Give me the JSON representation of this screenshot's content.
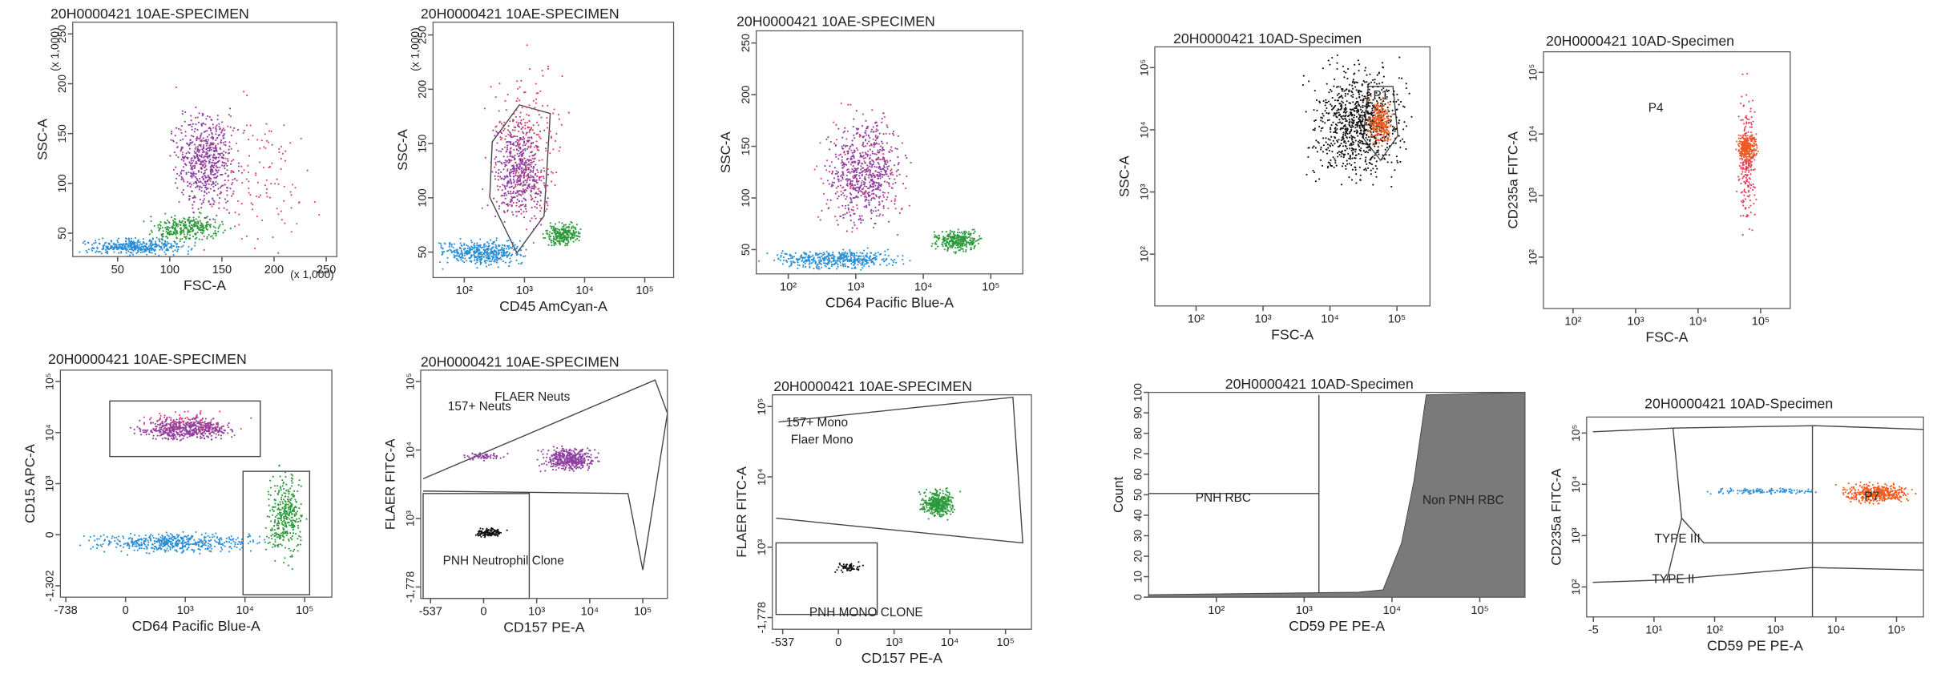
{
  "panels": [
    {
      "title": "20H0000421 10AE-SPECIMEN",
      "y_label": "SSC-A",
      "y_unit": "(x 1,000)",
      "x_label": "FSC-A",
      "x_unit": "(x 1,000)",
      "y_ticks": [
        "50",
        "100",
        "150",
        "200",
        "250"
      ],
      "x_ticks": [
        "50",
        "100",
        "150",
        "200",
        "250"
      ],
      "gates": []
    },
    {
      "title": "20H0000421 10AE-SPECIMEN",
      "y_label": "SSC-A",
      "y_unit": "(x 1,000)",
      "x_label": "CD45 AmCyan-A",
      "y_ticks": [
        "50",
        "100",
        "150",
        "200",
        "250"
      ],
      "x_ticks": [
        "10²",
        "10³",
        "10⁴",
        "10⁵"
      ],
      "gates": []
    },
    {
      "title": "20H0000421 10AE-SPECIMEN",
      "y_label": "SSC-A",
      "x_label": "CD64 Pacific Blue-A",
      "y_ticks": [
        "50",
        "100",
        "150",
        "200",
        "250"
      ],
      "x_ticks": [
        "10²",
        "10³",
        "10⁴",
        "10⁵"
      ],
      "gates": []
    },
    {
      "title": "20H0000421 10AD-Specimen",
      "y_label": "SSC-A",
      "x_label": "FSC-A",
      "y_ticks": [
        "10²",
        "10³",
        "10⁴",
        "10⁵"
      ],
      "x_ticks": [
        "10²",
        "10³",
        "10⁴",
        "10⁵"
      ],
      "gates": [
        "P1"
      ]
    },
    {
      "title": "20H0000421 10AD-Specimen",
      "y_label": "CD235a FITC-A",
      "x_label": "FSC-A",
      "y_ticks": [
        "10²",
        "10³",
        "10⁴",
        "10⁵"
      ],
      "x_ticks": [
        "10²",
        "10³",
        "10⁴",
        "10⁵"
      ],
      "gates": [
        "P4"
      ]
    },
    {
      "title": "20H0000421 10AE-SPECIMEN",
      "y_label": "CD15 APC-A",
      "x_label": "CD64 Pacific Blue-A",
      "y_ticks": [
        "-1,302",
        "0",
        "10³",
        "10⁴",
        "10⁵"
      ],
      "x_ticks": [
        "-738",
        "0",
        "10³",
        "10⁴",
        "10⁵"
      ],
      "gates": []
    },
    {
      "title": "20H0000421 10AE-SPECIMEN",
      "y_label": "FLAER FITC-A",
      "x_label": "CD157 PE-A",
      "y_ticks": [
        "-1,778",
        "10³",
        "10⁴",
        "10⁵"
      ],
      "x_ticks": [
        "-537",
        "0",
        "10³",
        "10⁴",
        "10⁵"
      ],
      "gates": [
        "157+ Neuts",
        "FLAER Neuts",
        "PNH Neutrophil Clone"
      ]
    },
    {
      "title": "20H0000421 10AE-SPECIMEN",
      "y_label": "FLAER FITC-A",
      "x_label": "CD157 PE-A",
      "y_ticks": [
        "-1,778",
        "10³",
        "10⁴",
        "10⁵"
      ],
      "x_ticks": [
        "-537",
        "0",
        "10³",
        "10⁴",
        "10⁵"
      ],
      "gates": [
        "157+ Mono",
        "Flaer Mono",
        "PNH MONO CLONE"
      ]
    },
    {
      "title": "20H0000421 10AD-Specimen",
      "y_label": "Count",
      "x_label": "CD59 PE PE-A",
      "y_ticks": [
        "0",
        "10",
        "20",
        "30",
        "40",
        "50",
        "60",
        "70",
        "80",
        "90",
        "100"
      ],
      "x_ticks": [
        "10²",
        "10³",
        "10⁴",
        "10⁵"
      ],
      "gates": [
        "PNH RBC",
        "Non PNH RBC"
      ]
    },
    {
      "title": "20H0000421 10AD-Specimen",
      "y_label": "CD235a FITC-A",
      "x_label": "CD59 PE PE-A",
      "y_ticks": [
        "10²",
        "10³",
        "10⁴",
        "10⁵"
      ],
      "x_ticks": [
        "-5",
        "10¹",
        "10²",
        "10³",
        "10⁴",
        "10⁵"
      ],
      "gates": [
        "TYPE III",
        "TYPE II",
        "P7"
      ]
    }
  ]
}
